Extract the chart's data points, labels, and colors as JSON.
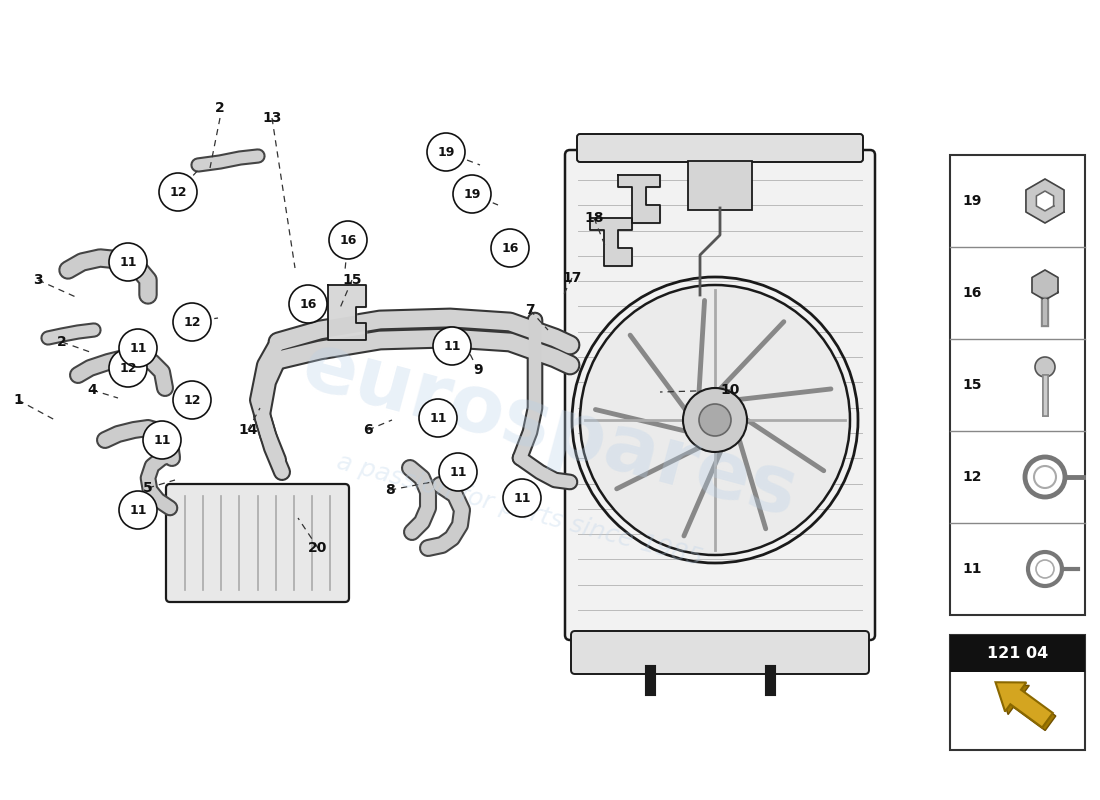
{
  "bg_color": "#ffffff",
  "part_number": "121 04",
  "line_color": "#1a1a1a",
  "watermark1": "eurospares",
  "watermark2": "a passion for parts since 1985",
  "plain_labels": [
    [
      "2",
      220,
      108
    ],
    [
      "2",
      62,
      342
    ],
    [
      "3",
      38,
      280
    ],
    [
      "1",
      18,
      400
    ],
    [
      "4",
      92,
      390
    ],
    [
      "5",
      148,
      488
    ],
    [
      "6",
      368,
      430
    ],
    [
      "7",
      530,
      310
    ],
    [
      "8",
      390,
      490
    ],
    [
      "9",
      478,
      370
    ],
    [
      "10",
      730,
      390
    ],
    [
      "13",
      272,
      118
    ],
    [
      "14",
      248,
      430
    ],
    [
      "15",
      352,
      280
    ],
    [
      "17",
      572,
      278
    ],
    [
      "18",
      594,
      218
    ],
    [
      "20",
      318,
      548
    ]
  ],
  "circle_labels": [
    [
      "12",
      178,
      192
    ],
    [
      "12",
      192,
      322
    ],
    [
      "12",
      128,
      368
    ],
    [
      "12",
      192,
      400
    ],
    [
      "11",
      128,
      262
    ],
    [
      "11",
      138,
      348
    ],
    [
      "11",
      162,
      440
    ],
    [
      "11",
      138,
      510
    ],
    [
      "11",
      452,
      346
    ],
    [
      "11",
      438,
      418
    ],
    [
      "11",
      458,
      472
    ],
    [
      "11",
      522,
      498
    ],
    [
      "16",
      308,
      304
    ],
    [
      "16",
      348,
      240
    ],
    [
      "16",
      510,
      248
    ],
    [
      "19",
      446,
      152
    ],
    [
      "19",
      472,
      194
    ]
  ],
  "leader_lines": [
    [
      220,
      118,
      210,
      168
    ],
    [
      62,
      342,
      90,
      352
    ],
    [
      38,
      280,
      78,
      298
    ],
    [
      18,
      400,
      55,
      420
    ],
    [
      92,
      390,
      118,
      398
    ],
    [
      148,
      488,
      175,
      480
    ],
    [
      272,
      118,
      295,
      268
    ],
    [
      352,
      280,
      340,
      308
    ],
    [
      530,
      310,
      548,
      330
    ],
    [
      478,
      370,
      468,
      350
    ],
    [
      572,
      278,
      562,
      298
    ],
    [
      594,
      218,
      606,
      248
    ],
    [
      730,
      390,
      660,
      392
    ],
    [
      390,
      490,
      432,
      482
    ],
    [
      248,
      430,
      260,
      408
    ],
    [
      318,
      548,
      298,
      518
    ],
    [
      368,
      430,
      392,
      420
    ],
    [
      510,
      248,
      520,
      268
    ]
  ]
}
